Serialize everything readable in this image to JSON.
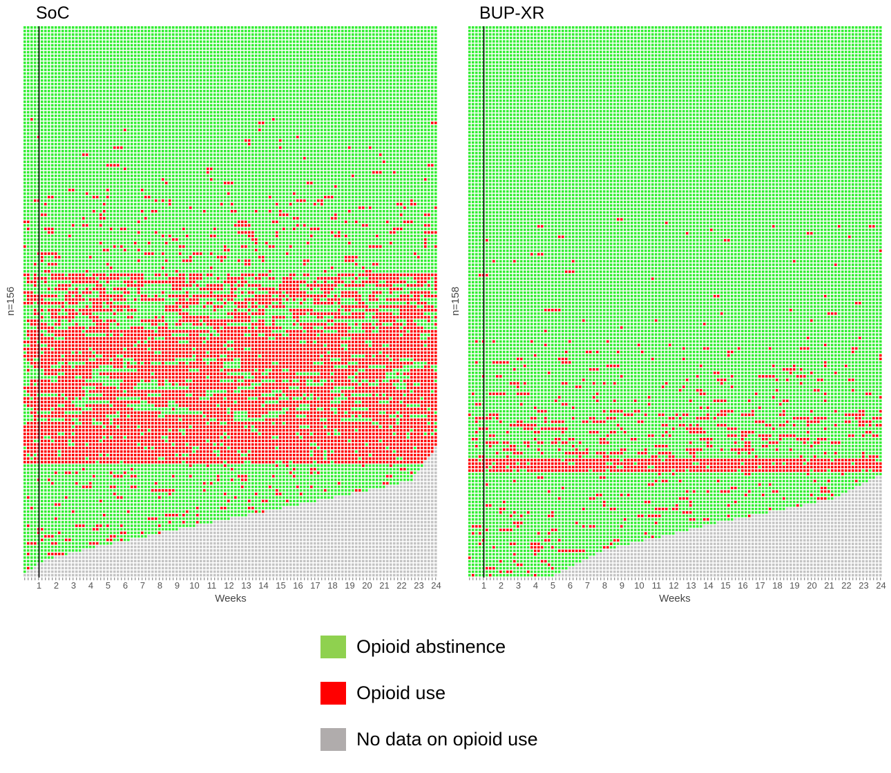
{
  "colors": {
    "abstinence": "#33ee33",
    "use": "#ff0000",
    "nodata": "#c4c4c4",
    "legend_abstinence": "#8fd14f",
    "legend_use": "#ff0000",
    "legend_nodata": "#b0acac",
    "grid": "#ffffff"
  },
  "legend": {
    "abstinence": "Opioid abstinence",
    "use": "Opioid use",
    "nodata": "No data on opioid use"
  },
  "chart_data": [
    {
      "type": "heatmap",
      "title": "SoC",
      "ylabel": "n=156",
      "xlabel": "Weeks",
      "x_ticks": [
        "1",
        "2",
        "3",
        "4",
        "5",
        "6",
        "7",
        "8",
        "9",
        "10",
        "11",
        "12",
        "13",
        "14",
        "15",
        "16",
        "17",
        "18",
        "19",
        "20",
        "21",
        "22",
        "23",
        "24"
      ],
      "n_participants": 156,
      "n_cells_per_row": 120,
      "cells_per_week": 5,
      "reference_line_week": 1,
      "seed": 7,
      "bands": [
        {
          "from": 0,
          "to": 26,
          "use_rate": 0.0
        },
        {
          "from": 26,
          "to": 48,
          "use_rate": 0.02
        },
        {
          "from": 48,
          "to": 70,
          "use_rate": 0.07
        },
        {
          "from": 70,
          "to": 86,
          "use_rate": 0.28
        },
        {
          "from": 86,
          "to": 94,
          "use_rate": 0.6
        },
        {
          "from": 94,
          "to": 112,
          "use_rate": 0.35
        },
        {
          "from": 112,
          "to": 124,
          "use_rate": 0.85
        },
        {
          "from": 124,
          "to": 156,
          "use_rate": 0.08
        }
      ],
      "dropout_start_row": 118,
      "dropout": [
        {
          "row": 0,
          "end_week": 24
        },
        {
          "row": 0.28,
          "end_week": 22.5
        },
        {
          "row": 0.42,
          "end_week": 17.5
        },
        {
          "row": 0.62,
          "end_week": 10
        },
        {
          "row": 0.82,
          "end_week": 3
        },
        {
          "row": 0.9,
          "end_week": 1
        },
        {
          "row": 1,
          "end_week": 0
        }
      ]
    },
    {
      "type": "heatmap",
      "title": "BUP-XR",
      "ylabel": "n=158",
      "xlabel": "Weeks",
      "x_ticks": [
        "1",
        "2",
        "3",
        "4",
        "5",
        "6",
        "7",
        "8",
        "9",
        "10",
        "11",
        "12",
        "13",
        "14",
        "15",
        "16",
        "17",
        "18",
        "19",
        "20",
        "21",
        "22",
        "23",
        "24"
      ],
      "n_participants": 158,
      "n_cells_per_row": 120,
      "cells_per_week": 5,
      "reference_line_week": 1,
      "seed": 11,
      "bands": [
        {
          "from": 0,
          "to": 55,
          "use_rate": 0.0
        },
        {
          "from": 55,
          "to": 90,
          "use_rate": 0.01
        },
        {
          "from": 90,
          "to": 110,
          "use_rate": 0.05
        },
        {
          "from": 110,
          "to": 124,
          "use_rate": 0.14
        },
        {
          "from": 124,
          "to": 128,
          "use_rate": 0.85
        },
        {
          "from": 128,
          "to": 158,
          "use_rate": 0.06
        }
      ],
      "dropout_start_row": 128,
      "dropout": [
        {
          "row": 0,
          "end_week": 24
        },
        {
          "row": 0.25,
          "end_week": 21
        },
        {
          "row": 0.5,
          "end_week": 14
        },
        {
          "row": 0.75,
          "end_week": 8
        },
        {
          "row": 1,
          "end_week": 5
        }
      ]
    }
  ]
}
